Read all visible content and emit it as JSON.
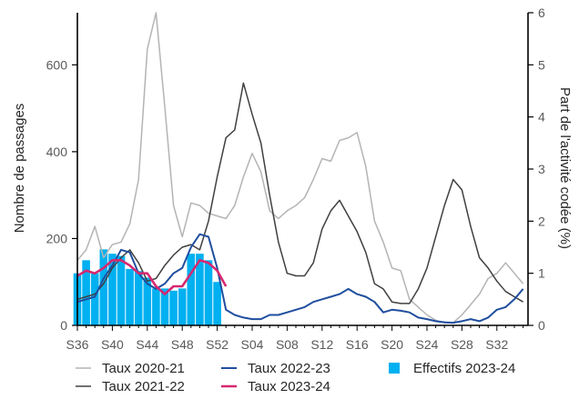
{
  "chart_data": {
    "type": "bar+line",
    "title": "",
    "x_ticks": [
      "S36",
      "S40",
      "S44",
      "S48",
      "S52",
      "S04",
      "S08",
      "S12",
      "S16",
      "S20",
      "S24",
      "S28",
      "S32"
    ],
    "weeks": [
      "S36",
      "S37",
      "S38",
      "S39",
      "S40",
      "S41",
      "S42",
      "S43",
      "S44",
      "S45",
      "S46",
      "S47",
      "S48",
      "S49",
      "S50",
      "S51",
      "S52",
      "S01",
      "S02",
      "S03",
      "S04",
      "S05",
      "S06",
      "S07",
      "S08",
      "S09",
      "S10",
      "S11",
      "S12",
      "S13",
      "S14",
      "S15",
      "S16",
      "S17",
      "S18",
      "S19",
      "S20",
      "S21",
      "S22",
      "S23",
      "S24",
      "S25",
      "S26",
      "S27",
      "S28",
      "S29",
      "S30",
      "S31",
      "S32",
      "S33",
      "S34",
      "S35"
    ],
    "y_left": {
      "label": "Nombre de passages",
      "ticks": [
        0,
        200,
        400,
        600
      ],
      "range": [
        0,
        720
      ]
    },
    "y_right": {
      "label": "Part de l'activité codée (%)",
      "ticks": [
        0,
        1,
        2,
        3,
        4,
        5,
        6
      ],
      "range": [
        0,
        6
      ]
    },
    "bars": {
      "name": "Effectifs 2023-24",
      "color": "#00b0f0",
      "values": [
        120,
        150,
        120,
        175,
        165,
        160,
        130,
        125,
        110,
        85,
        85,
        80,
        85,
        165,
        165,
        150,
        100
      ]
    },
    "series": [
      {
        "name": "Taux 2020-21",
        "color": "#b4b4b4",
        "axis": "right",
        "values": [
          1.25,
          1.45,
          1.9,
          1.3,
          1.55,
          1.6,
          1.95,
          2.8,
          5.3,
          6.0,
          4.2,
          2.3,
          1.7,
          2.35,
          2.3,
          2.15,
          2.1,
          2.05,
          2.3,
          2.85,
          3.3,
          2.95,
          2.2,
          2.05,
          2.2,
          2.3,
          2.45,
          2.8,
          3.2,
          3.15,
          3.55,
          3.6,
          3.7,
          3.05,
          2.0,
          1.6,
          1.1,
          1.05,
          0.5,
          0.35,
          0.2,
          0.1,
          0.05,
          0.05,
          0.2,
          0.4,
          0.6,
          0.9,
          1.0,
          1.2,
          1.0,
          0.8
        ]
      },
      {
        "name": "Taux 2021-22",
        "color": "#404040",
        "axis": "right",
        "values": [
          0.5,
          0.55,
          0.6,
          0.8,
          1.1,
          1.3,
          1.45,
          1.2,
          0.85,
          0.9,
          1.15,
          1.35,
          1.5,
          1.55,
          1.45,
          2.0,
          2.85,
          3.6,
          3.75,
          4.65,
          4.05,
          3.5,
          2.5,
          1.6,
          1.0,
          0.95,
          0.95,
          1.2,
          1.85,
          2.2,
          2.4,
          2.1,
          1.8,
          1.4,
          0.8,
          0.7,
          0.45,
          0.42,
          0.42,
          0.7,
          1.1,
          1.7,
          2.3,
          2.8,
          2.6,
          1.9,
          1.3,
          1.1,
          0.85,
          0.65,
          0.55,
          0.45
        ]
      },
      {
        "name": "Taux 2022-23",
        "color": "#1f4e9e",
        "axis": "right",
        "values": [
          0.45,
          0.5,
          0.55,
          0.9,
          1.15,
          1.45,
          1.4,
          1.0,
          0.8,
          0.7,
          0.8,
          1.0,
          1.1,
          1.5,
          1.75,
          1.7,
          1.1,
          0.3,
          0.2,
          0.15,
          0.12,
          0.12,
          0.2,
          0.2,
          0.25,
          0.3,
          0.35,
          0.45,
          0.5,
          0.55,
          0.6,
          0.7,
          0.6,
          0.55,
          0.45,
          0.25,
          0.3,
          0.28,
          0.25,
          0.15,
          0.12,
          0.08,
          0.06,
          0.05,
          0.08,
          0.12,
          0.08,
          0.15,
          0.3,
          0.35,
          0.5,
          0.7
        ]
      },
      {
        "name": "Taux 2023-24",
        "color": "#d6286f",
        "axis": "right",
        "values": [
          0.95,
          1.05,
          1.0,
          1.1,
          1.25,
          1.25,
          1.15,
          1.0,
          1.0,
          0.75,
          0.6,
          0.75,
          0.75,
          1.0,
          1.25,
          1.2,
          1.05,
          0.75
        ]
      }
    ],
    "legend": {
      "position": "bottom",
      "items": [
        "Taux 2020-21",
        "Taux 2022-23",
        "Effectifs 2023-24",
        "Taux 2021-22",
        "Taux 2023-24"
      ]
    }
  }
}
